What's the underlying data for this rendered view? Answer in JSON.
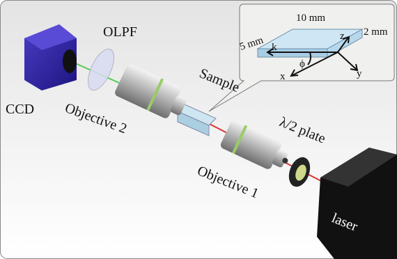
{
  "labels": {
    "olpf": "OLPF",
    "ccd": "CCD",
    "objective2": "Objective 2",
    "sample": "Sample",
    "half_wave_plate": "λ/2 plate",
    "objective1": "Objective 1",
    "laser": "laser"
  },
  "inset": {
    "length": "10 mm",
    "thickness": "2 mm",
    "width": "5 mm",
    "k": "k",
    "z": "z",
    "phi": "ϕ",
    "x": "x",
    "y": "y"
  }
}
